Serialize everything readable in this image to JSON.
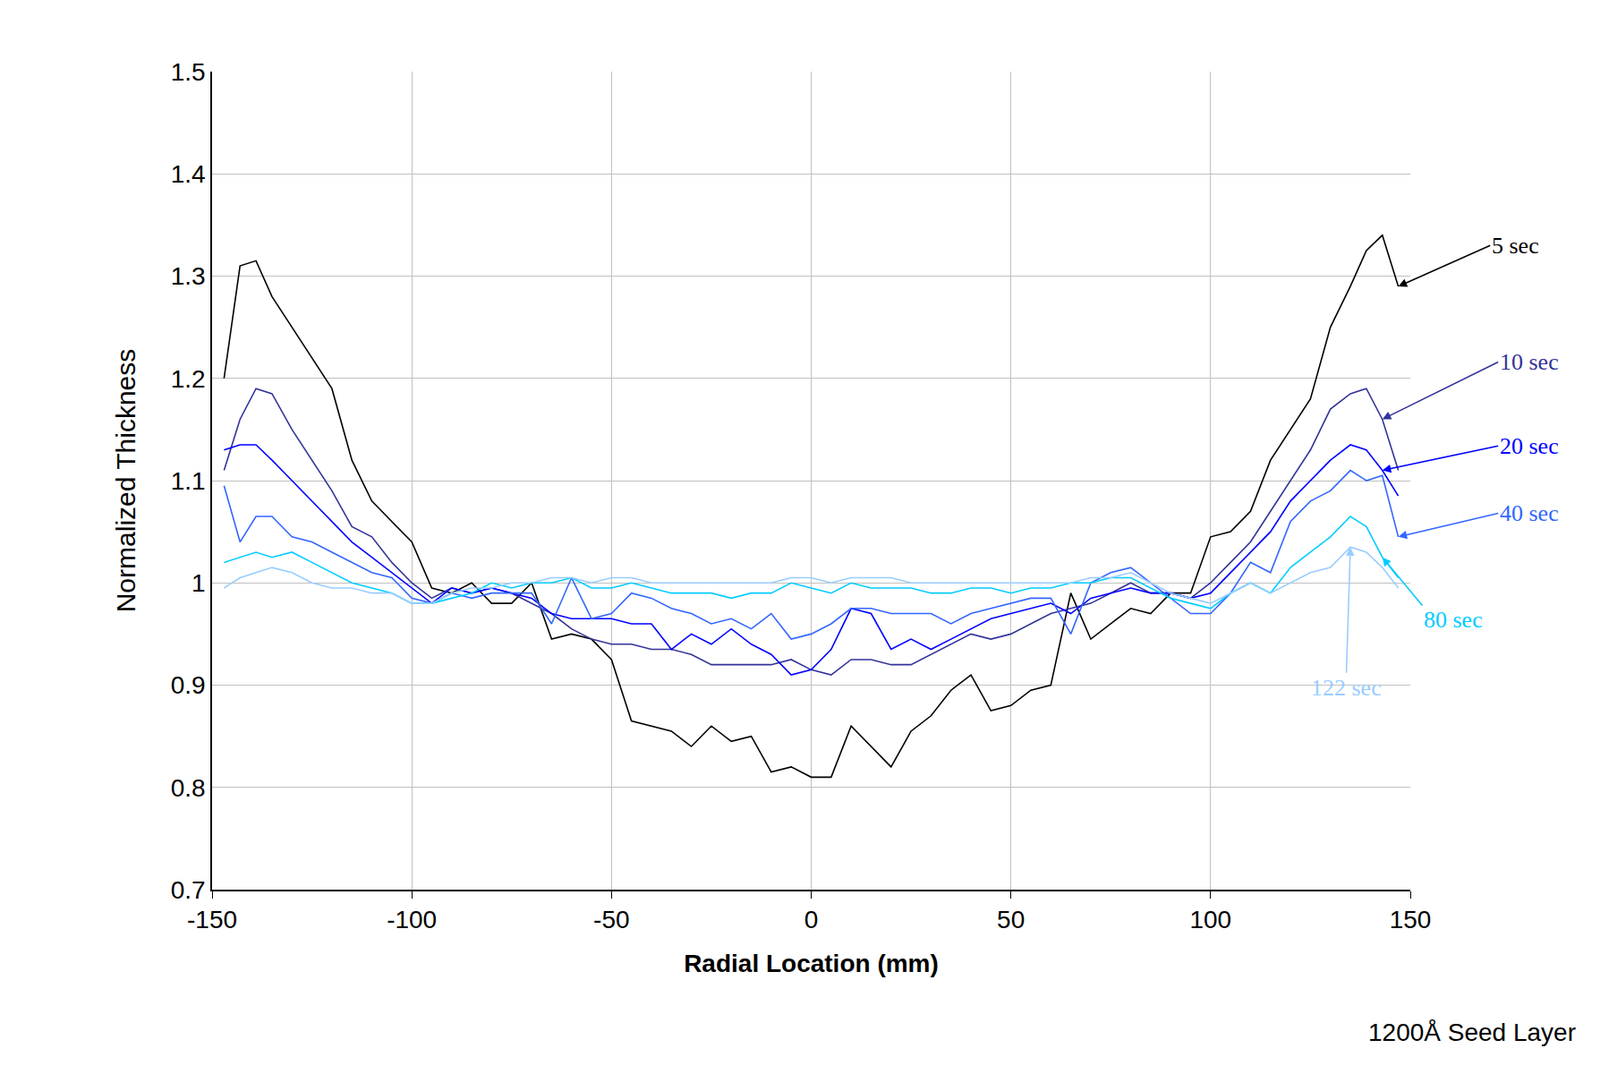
{
  "chart_data": {
    "type": "line",
    "x_label": "Radial Location (mm)",
    "y_label": "Normalized Thickness",
    "annotations": [
      "1200Å Seed Layer"
    ],
    "xlim": [
      -150,
      150
    ],
    "xticks": [
      -150,
      -100,
      -50,
      0,
      50,
      100,
      150
    ],
    "ylim": [
      0.7,
      1.5
    ],
    "yticks": [
      0.7,
      0.8,
      0.9,
      1,
      1.1,
      1.2,
      1.3,
      1.4,
      1.5
    ],
    "grid": true,
    "x": [
      -147,
      -143,
      -139,
      -135,
      -130,
      -125,
      -120,
      -115,
      -110,
      -105,
      -100,
      -95,
      -90,
      -85,
      -80,
      -75,
      -70,
      -65,
      -60,
      -55,
      -50,
      -45,
      -40,
      -35,
      -30,
      -25,
      -20,
      -15,
      -10,
      -5,
      0,
      5,
      10,
      15,
      20,
      25,
      30,
      35,
      40,
      45,
      50,
      55,
      60,
      65,
      70,
      75,
      80,
      85,
      90,
      95,
      100,
      105,
      110,
      115,
      120,
      125,
      130,
      135,
      139,
      143,
      147
    ],
    "series": [
      {
        "name": "5 sec",
        "color": "#000000",
        "values": [
          1.2,
          1.31,
          1.315,
          1.28,
          1.25,
          1.22,
          1.19,
          1.12,
          1.08,
          1.06,
          1.04,
          0.995,
          0.99,
          1.0,
          0.98,
          0.98,
          1.0,
          0.945,
          0.95,
          0.945,
          0.925,
          0.865,
          0.86,
          0.855,
          0.84,
          0.86,
          0.845,
          0.85,
          0.815,
          0.82,
          0.81,
          0.81,
          0.86,
          0.84,
          0.82,
          0.855,
          0.87,
          0.895,
          0.91,
          0.875,
          0.88,
          0.895,
          0.9,
          0.99,
          0.945,
          0.96,
          0.975,
          0.97,
          0.99,
          0.99,
          1.045,
          1.05,
          1.07,
          1.12,
          1.15,
          1.18,
          1.25,
          1.29,
          1.325,
          1.34,
          1.29
        ]
      },
      {
        "name": "10 sec",
        "color": "#333399",
        "values": [
          1.11,
          1.16,
          1.19,
          1.185,
          1.15,
          1.12,
          1.09,
          1.055,
          1.045,
          1.02,
          1.0,
          0.985,
          0.995,
          0.99,
          0.995,
          0.99,
          0.98,
          0.97,
          0.955,
          0.945,
          0.94,
          0.94,
          0.935,
          0.935,
          0.93,
          0.92,
          0.92,
          0.92,
          0.92,
          0.925,
          0.915,
          0.91,
          0.925,
          0.925,
          0.92,
          0.92,
          0.93,
          0.94,
          0.95,
          0.945,
          0.95,
          0.96,
          0.97,
          0.975,
          0.98,
          0.99,
          1.0,
          0.99,
          0.99,
          0.985,
          1.0,
          1.02,
          1.04,
          1.07,
          1.1,
          1.13,
          1.17,
          1.185,
          1.19,
          1.16,
          1.11
        ]
      },
      {
        "name": "20 sec",
        "color": "#0000ff",
        "values": [
          1.13,
          1.135,
          1.135,
          1.12,
          1.1,
          1.08,
          1.06,
          1.04,
          1.025,
          1.01,
          0.995,
          0.98,
          0.995,
          0.99,
          0.995,
          0.99,
          0.985,
          0.97,
          0.965,
          0.965,
          0.965,
          0.96,
          0.96,
          0.935,
          0.95,
          0.94,
          0.955,
          0.94,
          0.93,
          0.91,
          0.915,
          0.935,
          0.975,
          0.97,
          0.935,
          0.945,
          0.935,
          0.945,
          0.955,
          0.965,
          0.97,
          0.975,
          0.98,
          0.97,
          0.985,
          0.99,
          0.995,
          0.99,
          0.99,
          0.985,
          0.99,
          1.01,
          1.03,
          1.05,
          1.08,
          1.1,
          1.12,
          1.135,
          1.13,
          1.11,
          1.085
        ]
      },
      {
        "name": "40 sec",
        "color": "#3366ff",
        "values": [
          1.095,
          1.04,
          1.065,
          1.065,
          1.045,
          1.04,
          1.03,
          1.02,
          1.01,
          1.005,
          0.985,
          0.98,
          0.99,
          0.985,
          0.99,
          0.99,
          0.99,
          0.96,
          1.005,
          0.965,
          0.97,
          0.99,
          0.985,
          0.975,
          0.97,
          0.96,
          0.965,
          0.955,
          0.97,
          0.945,
          0.95,
          0.96,
          0.975,
          0.975,
          0.97,
          0.97,
          0.97,
          0.96,
          0.97,
          0.975,
          0.98,
          0.985,
          0.985,
          0.95,
          1.0,
          1.01,
          1.015,
          1.0,
          0.985,
          0.97,
          0.97,
          0.99,
          1.02,
          1.01,
          1.06,
          1.08,
          1.09,
          1.11,
          1.1,
          1.105,
          1.045
        ]
      },
      {
        "name": "80 sec",
        "color": "#00ccff",
        "values": [
          1.02,
          1.025,
          1.03,
          1.025,
          1.03,
          1.02,
          1.01,
          1.0,
          0.995,
          0.99,
          0.98,
          0.98,
          0.985,
          0.99,
          1.0,
          0.995,
          1.0,
          1.0,
          1.005,
          0.995,
          0.995,
          1.0,
          0.995,
          0.99,
          0.99,
          0.99,
          0.985,
          0.99,
          0.99,
          1.0,
          0.995,
          0.99,
          1.0,
          0.995,
          0.995,
          0.995,
          0.99,
          0.99,
          0.995,
          0.995,
          0.99,
          0.995,
          0.995,
          1.0,
          1.0,
          1.005,
          1.005,
          0.995,
          0.985,
          0.98,
          0.975,
          0.99,
          1.0,
          0.99,
          1.015,
          1.03,
          1.045,
          1.065,
          1.055,
          1.025,
          1.005
        ]
      },
      {
        "name": "122 sec",
        "color": "#99ccff",
        "values": [
          0.995,
          1.005,
          1.01,
          1.015,
          1.01,
          1.0,
          0.995,
          0.995,
          0.99,
          0.99,
          0.98,
          0.98,
          0.99,
          0.995,
          0.995,
          1.0,
          1.0,
          1.005,
          1.005,
          1.0,
          1.005,
          1.005,
          1.0,
          1.0,
          1.0,
          1.0,
          1.0,
          1.0,
          1.0,
          1.005,
          1.005,
          1.0,
          1.005,
          1.005,
          1.005,
          1.0,
          1.0,
          1.0,
          1.0,
          1.0,
          1.0,
          1.0,
          1.0,
          1.0,
          1.005,
          1.005,
          1.01,
          1.0,
          0.99,
          0.985,
          0.98,
          0.99,
          1.0,
          0.99,
          1.0,
          1.01,
          1.015,
          1.035,
          1.03,
          1.015,
          0.995
        ]
      }
    ]
  }
}
